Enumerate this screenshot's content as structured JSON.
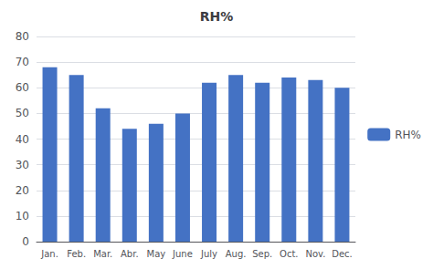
{
  "chart_data": {
    "type": "bar",
    "title": "RH%",
    "categories": [
      "Jan.",
      "Feb.",
      "Mar.",
      "Abr.",
      "May",
      "June",
      "July",
      "Aug.",
      "Sep.",
      "Oct.",
      "Nov.",
      "Dec."
    ],
    "series": [
      {
        "name": "RH%",
        "color": "#4472C4",
        "values": [
          68,
          65,
          52,
          44,
          46,
          50,
          62,
          65,
          62,
          64,
          63,
          60
        ]
      }
    ],
    "ylim": [
      0,
      80
    ],
    "yticks": [
      0,
      10,
      20,
      30,
      40,
      50,
      60,
      70,
      80
    ],
    "grid": true,
    "legend": "right"
  }
}
